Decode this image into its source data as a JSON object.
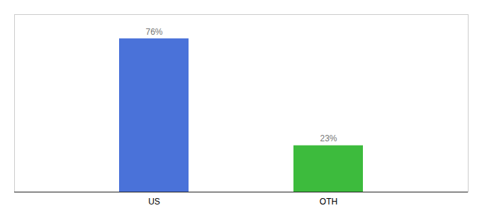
{
  "chart_data": {
    "type": "bar",
    "categories": [
      "US",
      "OTH"
    ],
    "values": [
      76,
      23
    ],
    "value_labels": [
      "76%",
      "23%"
    ],
    "colors": [
      "#4a72d9",
      "#3dbb3d"
    ],
    "ylim": [
      0,
      88
    ],
    "yticks": [],
    "data_labels": true,
    "tick_labels": "x"
  }
}
